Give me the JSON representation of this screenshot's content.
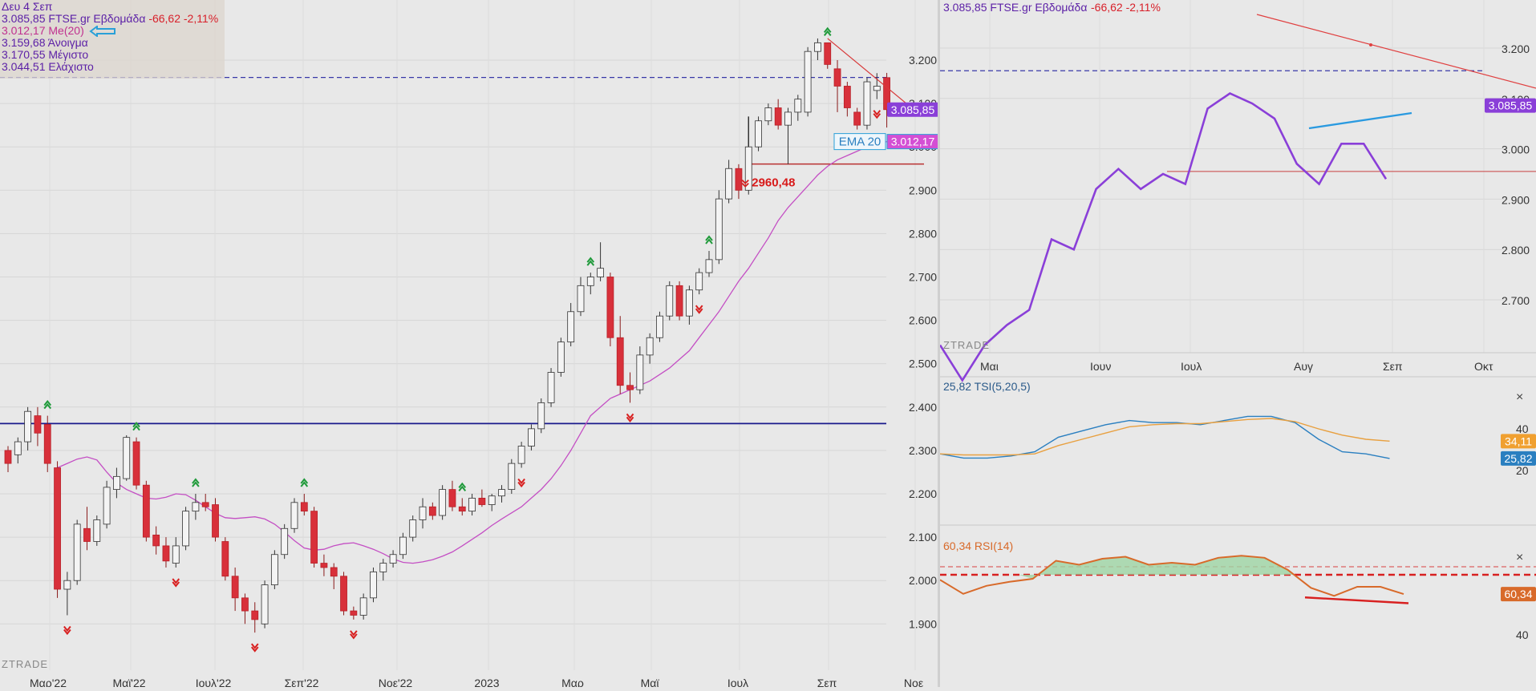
{
  "left_info": {
    "date": "Δευ 4 Σεπ",
    "price_line_prefix": "3.085,85 FTSE.gr Εβδομάδα",
    "price_line_change": "-66,62 -2,11%",
    "ma_line": "3.012,17 Me(20)",
    "open_line": "3.159,68 Άνοιγμα",
    "high_line": "3.170,55 Μέγιστο",
    "low_line": "3.044,51 Ελάχιστο"
  },
  "left_labels": {
    "price_badge": "3.085,85",
    "ema_label": "EMA 20",
    "ema_badge": "3.012,17",
    "low_annotation": "2960,48",
    "watermark": "ZTRADE"
  },
  "right_info": {
    "price_line_prefix": "3.085,85 FTSE.gr Εβδομάδα",
    "price_line_change": "-66,62 -2,11%",
    "price_badge": "3.085,85",
    "watermark": "ZTRADE",
    "tsi_title": "25,82 TSI(5,20,5)",
    "tsi_badge_blue": "25,82",
    "tsi_badge_orange": "34,11",
    "rsi_title": "60,34 RSI(14)",
    "rsi_badge": "60,34",
    "close_symbol": "×"
  },
  "colors": {
    "background": "#e8e8e8",
    "up_candle": "#f4f4f4",
    "down_candle": "#d8303a",
    "ema": "#c44fc4",
    "price_line": "#8a3fd8",
    "support_line": "#1a1a8c",
    "tsi_blue": "#2a7fc0",
    "tsi_orange": "#e8a040",
    "rsi": "#d86a2a",
    "rsi_fill": "#9ed4a4"
  },
  "chart_data": [
    {
      "type": "candlestick",
      "title": "FTSE.gr Εβδομάδα",
      "x_tick_labels": [
        "Μαρ'22",
        "Μαϊ'22",
        "Ιουλ'22",
        "Σεπ'22",
        "Νοε'22",
        "2023",
        "Μαρ",
        "Μαϊ",
        "Ιουλ",
        "Σεπ",
        "Νοε"
      ],
      "y_tick_labels": [
        "3.200",
        "3.100",
        "3.000",
        "2.900",
        "2.800",
        "2.700",
        "2.600",
        "2.500",
        "2.400",
        "2.300",
        "2.200",
        "2.100",
        "2.000",
        "1.900"
      ],
      "ylim": [
        1830,
        3300
      ],
      "candles": [
        {
          "o": 2300,
          "h": 2310,
          "l": 2250,
          "c": 2270
        },
        {
          "o": 2290,
          "h": 2330,
          "l": 2270,
          "c": 2320
        },
        {
          "o": 2320,
          "h": 2400,
          "l": 2300,
          "c": 2390
        },
        {
          "o": 2380,
          "h": 2400,
          "l": 2310,
          "c": 2340
        },
        {
          "o": 2360,
          "h": 2380,
          "l": 2250,
          "c": 2270
        },
        {
          "o": 2260,
          "h": 2275,
          "l": 1960,
          "c": 1980
        },
        {
          "o": 1980,
          "h": 2020,
          "l": 1920,
          "c": 2000
        },
        {
          "o": 2000,
          "h": 2140,
          "l": 1990,
          "c": 2130
        },
        {
          "o": 2120,
          "h": 2170,
          "l": 2070,
          "c": 2090
        },
        {
          "o": 2090,
          "h": 2150,
          "l": 2080,
          "c": 2140
        },
        {
          "o": 2130,
          "h": 2230,
          "l": 2120,
          "c": 2215
        },
        {
          "o": 2210,
          "h": 2260,
          "l": 2190,
          "c": 2240
        },
        {
          "o": 2235,
          "h": 2335,
          "l": 2230,
          "c": 2330
        },
        {
          "o": 2320,
          "h": 2330,
          "l": 2210,
          "c": 2220
        },
        {
          "o": 2220,
          "h": 2230,
          "l": 2090,
          "c": 2100
        },
        {
          "o": 2105,
          "h": 2125,
          "l": 2060,
          "c": 2080
        },
        {
          "o": 2080,
          "h": 2100,
          "l": 2030,
          "c": 2045
        },
        {
          "o": 2040,
          "h": 2100,
          "l": 2030,
          "c": 2080
        },
        {
          "o": 2080,
          "h": 2170,
          "l": 2070,
          "c": 2160
        },
        {
          "o": 2160,
          "h": 2200,
          "l": 2140,
          "c": 2180
        },
        {
          "o": 2180,
          "h": 2200,
          "l": 2160,
          "c": 2170
        },
        {
          "o": 2175,
          "h": 2190,
          "l": 2090,
          "c": 2100
        },
        {
          "o": 2090,
          "h": 2100,
          "l": 2000,
          "c": 2010
        },
        {
          "o": 2010,
          "h": 2030,
          "l": 1930,
          "c": 1960
        },
        {
          "o": 1960,
          "h": 1970,
          "l": 1900,
          "c": 1930
        },
        {
          "o": 1930,
          "h": 1950,
          "l": 1880,
          "c": 1910
        },
        {
          "o": 1900,
          "h": 2000,
          "l": 1890,
          "c": 1990
        },
        {
          "o": 1990,
          "h": 2070,
          "l": 1980,
          "c": 2060
        },
        {
          "o": 2060,
          "h": 2130,
          "l": 2050,
          "c": 2120
        },
        {
          "o": 2120,
          "h": 2190,
          "l": 2110,
          "c": 2180
        },
        {
          "o": 2180,
          "h": 2200,
          "l": 2150,
          "c": 2160
        },
        {
          "o": 2160,
          "h": 2170,
          "l": 2030,
          "c": 2040
        },
        {
          "o": 2040,
          "h": 2060,
          "l": 2010,
          "c": 2030
        },
        {
          "o": 2030,
          "h": 2040,
          "l": 1980,
          "c": 2010
        },
        {
          "o": 2010,
          "h": 2020,
          "l": 1920,
          "c": 1930
        },
        {
          "o": 1930,
          "h": 1940,
          "l": 1910,
          "c": 1920
        },
        {
          "o": 1920,
          "h": 1970,
          "l": 1910,
          "c": 1960
        },
        {
          "o": 1960,
          "h": 2030,
          "l": 1950,
          "c": 2020
        },
        {
          "o": 2020,
          "h": 2050,
          "l": 2000,
          "c": 2040
        },
        {
          "o": 2040,
          "h": 2070,
          "l": 2030,
          "c": 2060
        },
        {
          "o": 2060,
          "h": 2110,
          "l": 2050,
          "c": 2100
        },
        {
          "o": 2100,
          "h": 2150,
          "l": 2090,
          "c": 2140
        },
        {
          "o": 2140,
          "h": 2190,
          "l": 2120,
          "c": 2170
        },
        {
          "o": 2170,
          "h": 2180,
          "l": 2140,
          "c": 2150
        },
        {
          "o": 2150,
          "h": 2220,
          "l": 2140,
          "c": 2210
        },
        {
          "o": 2210,
          "h": 2230,
          "l": 2160,
          "c": 2170
        },
        {
          "o": 2170,
          "h": 2190,
          "l": 2150,
          "c": 2160
        },
        {
          "o": 2160,
          "h": 2200,
          "l": 2150,
          "c": 2190
        },
        {
          "o": 2190,
          "h": 2210,
          "l": 2170,
          "c": 2175
        },
        {
          "o": 2175,
          "h": 2200,
          "l": 2160,
          "c": 2195
        },
        {
          "o": 2195,
          "h": 2220,
          "l": 2180,
          "c": 2210
        },
        {
          "o": 2210,
          "h": 2280,
          "l": 2200,
          "c": 2270
        },
        {
          "o": 2270,
          "h": 2320,
          "l": 2260,
          "c": 2310
        },
        {
          "o": 2310,
          "h": 2360,
          "l": 2300,
          "c": 2350
        },
        {
          "o": 2350,
          "h": 2420,
          "l": 2340,
          "c": 2410
        },
        {
          "o": 2410,
          "h": 2490,
          "l": 2400,
          "c": 2480
        },
        {
          "o": 2480,
          "h": 2560,
          "l": 2470,
          "c": 2550
        },
        {
          "o": 2550,
          "h": 2640,
          "l": 2540,
          "c": 2620
        },
        {
          "o": 2620,
          "h": 2700,
          "l": 2610,
          "c": 2680
        },
        {
          "o": 2680,
          "h": 2710,
          "l": 2660,
          "c": 2700
        },
        {
          "o": 2700,
          "h": 2780,
          "l": 2690,
          "c": 2720
        },
        {
          "o": 2700,
          "h": 2710,
          "l": 2540,
          "c": 2560
        },
        {
          "o": 2560,
          "h": 2610,
          "l": 2430,
          "c": 2450
        },
        {
          "o": 2450,
          "h": 2480,
          "l": 2410,
          "c": 2440
        },
        {
          "o": 2440,
          "h": 2540,
          "l": 2430,
          "c": 2520
        },
        {
          "o": 2520,
          "h": 2570,
          "l": 2500,
          "c": 2560
        },
        {
          "o": 2560,
          "h": 2620,
          "l": 2550,
          "c": 2610
        },
        {
          "o": 2610,
          "h": 2690,
          "l": 2600,
          "c": 2680
        },
        {
          "o": 2680,
          "h": 2690,
          "l": 2600,
          "c": 2610
        },
        {
          "o": 2610,
          "h": 2680,
          "l": 2590,
          "c": 2670
        },
        {
          "o": 2670,
          "h": 2720,
          "l": 2660,
          "c": 2710
        },
        {
          "o": 2710,
          "h": 2760,
          "l": 2700,
          "c": 2740
        },
        {
          "o": 2740,
          "h": 2900,
          "l": 2730,
          "c": 2880
        },
        {
          "o": 2880,
          "h": 2970,
          "l": 2870,
          "c": 2950
        },
        {
          "o": 2950,
          "h": 2960,
          "l": 2880,
          "c": 2900
        },
        {
          "o": 2900,
          "h": 3010,
          "l": 2890,
          "c": 3000
        },
        {
          "o": 3000,
          "h": 3070,
          "l": 2990,
          "c": 3060
        },
        {
          "o": 3060,
          "h": 3100,
          "l": 3050,
          "c": 3090
        },
        {
          "o": 3090,
          "h": 3110,
          "l": 3040,
          "c": 3050
        },
        {
          "o": 3050,
          "h": 3090,
          "l": 2960,
          "c": 3080
        },
        {
          "o": 3080,
          "h": 3120,
          "l": 3060,
          "c": 3110
        },
        {
          "o": 3080,
          "h": 3230,
          "l": 3070,
          "c": 3220
        },
        {
          "o": 3220,
          "h": 3250,
          "l": 3200,
          "c": 3240
        },
        {
          "o": 3240,
          "h": 3240,
          "l": 3180,
          "c": 3190
        },
        {
          "o": 3180,
          "h": 3200,
          "l": 3080,
          "c": 3140
        },
        {
          "o": 3140,
          "h": 3150,
          "l": 3070,
          "c": 3090
        },
        {
          "o": 3080,
          "h": 3090,
          "l": 3040,
          "c": 3050
        },
        {
          "o": 3050,
          "h": 3160,
          "l": 3040,
          "c": 3150
        },
        {
          "o": 3130,
          "h": 3170,
          "l": 3110,
          "c": 3140
        },
        {
          "o": 3159.68,
          "h": 3170.55,
          "l": 3044.51,
          "c": 3085.85
        }
      ],
      "ema20": [
        2260,
        2270,
        2280,
        2285,
        2278,
        2250,
        2225,
        2210,
        2200,
        2190,
        2188,
        2192,
        2200,
        2198,
        2185,
        2170,
        2155,
        2145,
        2143,
        2145,
        2147,
        2142,
        2130,
        2112,
        2092,
        2075,
        2070,
        2072,
        2080,
        2085,
        2087,
        2080,
        2072,
        2062,
        2050,
        2042,
        2040,
        2043,
        2048,
        2056,
        2066,
        2080,
        2095,
        2110,
        2127,
        2142,
        2156,
        2170,
        2190,
        2210,
        2235,
        2265,
        2300,
        2340,
        2380,
        2400,
        2420,
        2430,
        2440,
        2450,
        2460,
        2475,
        2490,
        2510,
        2530,
        2560,
        2590,
        2620,
        2655,
        2690,
        2720,
        2755,
        2790,
        2830,
        2860,
        2885,
        2910,
        2935,
        2955,
        2970,
        2980,
        2990,
        3000,
        3006,
        3012.17
      ],
      "ema_first_candle_index": 5,
      "horizontal_lines": [
        {
          "name": "dashed-resistance",
          "value": 3160,
          "style": "dashed"
        },
        {
          "name": "support",
          "value": 2362,
          "style": "solid"
        },
        {
          "name": "low-line",
          "value": 2960.48,
          "style": "solid"
        }
      ],
      "trendline": {
        "from_candle": 83,
        "from_value": 3250,
        "to_value": 3100
      },
      "high_marks": [
        4,
        13,
        19,
        30,
        46,
        59,
        71,
        83
      ],
      "low_marks": [
        6,
        17,
        25,
        35,
        52,
        63,
        70,
        88
      ],
      "annotation": {
        "text": "2960,48",
        "value": 2960.48
      }
    },
    {
      "type": "line",
      "title": "FTSE.gr Εβδομάδα",
      "x_tick_labels": [
        "Μαι",
        "Ιουν",
        "Ιουλ",
        "Αυγ",
        "Σεπ",
        "Οκτ"
      ],
      "y_tick_labels": [
        "3.200",
        "3.100",
        "3.000",
        "2.900",
        "2.800",
        "2.700"
      ],
      "ylim": [
        2620,
        3260
      ],
      "series": [
        {
          "name": "FTSE.gr",
          "values": [
            2610,
            2540,
            2610,
            2650,
            2680,
            2820,
            2800,
            2920,
            2960,
            2920,
            2950,
            2930,
            3080,
            3110,
            3090,
            3060,
            2970,
            2930,
            3010,
            3010,
            2940
          ]
        }
      ],
      "horizontal_lines": [
        {
          "value": 3155,
          "style": "dashed"
        },
        {
          "value": 2955,
          "style": "solid"
        }
      ],
      "trendlines": [
        {
          "name": "resistance",
          "from_index": 13,
          "from": 3230,
          "to_index": 24,
          "to": 3115
        },
        {
          "name": "support",
          "from_index": 16,
          "from": 2925,
          "to_index": 20,
          "to": 2945
        }
      ]
    },
    {
      "type": "line",
      "title": "TSI(5,20,5)",
      "y_tick_labels": [
        "40",
        "20"
      ],
      "ylim": [
        10,
        50
      ],
      "series": [
        {
          "name": "TSI",
          "values": [
            28,
            26,
            26,
            27,
            29,
            36,
            39,
            42,
            44,
            43,
            43,
            42,
            44,
            46,
            46,
            43,
            35,
            29,
            28,
            25.82
          ]
        },
        {
          "name": "Signal",
          "values": [
            28,
            27.5,
            27.5,
            27.5,
            28,
            32,
            35,
            38,
            41,
            42,
            42.5,
            42.5,
            43.5,
            44.5,
            45,
            43.5,
            40,
            37,
            35,
            34.11
          ]
        }
      ]
    },
    {
      "type": "area",
      "title": "RSI(14)",
      "y_tick_labels": [
        "60",
        "40"
      ],
      "ylim": [
        30,
        85
      ],
      "levels": [
        70,
        74
      ],
      "series": [
        {
          "name": "RSI",
          "values": [
            67.5,
            60.5,
            64.5,
            66.5,
            68,
            77,
            75,
            78,
            79,
            75,
            76,
            75,
            78.5,
            79.5,
            78.5,
            72.5,
            63.5,
            59.5,
            64,
            64,
            60.34
          ]
        }
      ],
      "divergence_line": {
        "from_index": 16,
        "from": 59.5,
        "to_index": 21,
        "to": 57
      }
    }
  ]
}
